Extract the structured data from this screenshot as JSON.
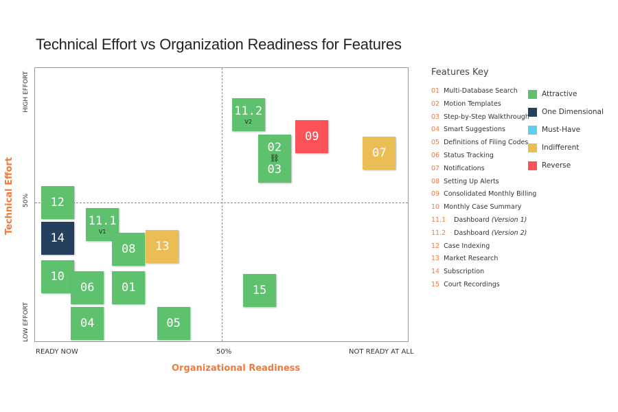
{
  "chart_data": {
    "type": "scatter",
    "title": "Technical Effort vs Organization Readiness for Features",
    "xlabel": "Organizational Readiness",
    "ylabel": "Technical Effort",
    "x_ticks": [
      "READY NOW",
      "50%",
      "NOT READY AT ALL"
    ],
    "y_ticks": [
      "LOW EFFORT",
      "50%",
      "HIGH EFFORT"
    ],
    "xlim": [
      0,
      100
    ],
    "ylim": [
      0,
      100
    ],
    "grid": "dashed midlines at 50%",
    "points": [
      {
        "labels": [
          "11.2"
        ],
        "sub": "V2",
        "x": 57,
        "y": 83,
        "category": "Attractive"
      },
      {
        "labels": [
          "02",
          "03"
        ],
        "linked": true,
        "x": 64,
        "y": 67,
        "category": "Attractive"
      },
      {
        "labels": [
          "09"
        ],
        "x": 74,
        "y": 75,
        "category": "Reverse"
      },
      {
        "labels": [
          "07"
        ],
        "x": 92,
        "y": 69,
        "category": "Indifferent"
      },
      {
        "labels": [
          "12"
        ],
        "x": 6,
        "y": 51,
        "category": "Attractive"
      },
      {
        "labels": [
          "14"
        ],
        "x": 6,
        "y": 38,
        "category": "One Dimensional"
      },
      {
        "labels": [
          "11.1"
        ],
        "sub": "V1",
        "x": 18,
        "y": 43,
        "category": "Attractive"
      },
      {
        "labels": [
          "08"
        ],
        "x": 25,
        "y": 34,
        "category": "Attractive"
      },
      {
        "labels": [
          "13"
        ],
        "x": 34,
        "y": 35,
        "category": "Indifferent"
      },
      {
        "labels": [
          "10"
        ],
        "x": 6,
        "y": 24,
        "category": "Attractive"
      },
      {
        "labels": [
          "06"
        ],
        "x": 14,
        "y": 20,
        "category": "Attractive"
      },
      {
        "labels": [
          "01"
        ],
        "x": 25,
        "y": 20,
        "category": "Attractive"
      },
      {
        "labels": [
          "15"
        ],
        "x": 60,
        "y": 19,
        "category": "Attractive"
      },
      {
        "labels": [
          "04"
        ],
        "x": 14,
        "y": 7,
        "category": "Attractive"
      },
      {
        "labels": [
          "05"
        ],
        "x": 37,
        "y": 7,
        "category": "Attractive"
      }
    ],
    "legend": {
      "placement": "right",
      "categories": [
        {
          "name": "Attractive",
          "color": "#5ec16d"
        },
        {
          "name": "One Dimensional",
          "color": "#253f5e"
        },
        {
          "name": "Must-Have",
          "color": "#5fcdf0"
        },
        {
          "name": "Indifferent",
          "color": "#ebbd55"
        },
        {
          "name": "Reverse",
          "color": "#fb5258"
        }
      ]
    }
  },
  "key": {
    "title": "Features Key",
    "items": [
      {
        "num": "01",
        "name": "Multi-Database Search"
      },
      {
        "num": "02",
        "name": "Motion Templates"
      },
      {
        "num": "03",
        "name": "Step-by-Step Walkthrough"
      },
      {
        "num": "04",
        "name": "Smart Suggestions"
      },
      {
        "num": "05",
        "name": "Definitions of Filing Codes"
      },
      {
        "num": "06",
        "name": "Status Tracking"
      },
      {
        "num": "07",
        "name": "Notifications"
      },
      {
        "num": "08",
        "name": "Setting Up Alerts"
      },
      {
        "num": "09",
        "name": "Consolidated Monthly Billing"
      },
      {
        "num": "10",
        "name": "Monthly Case Summary"
      },
      {
        "num": "11.1",
        "name": "Dashboard",
        "note": "(Version 1)"
      },
      {
        "num": "11.2",
        "name": "Dashboard",
        "note": "(Version 2)"
      },
      {
        "num": "12",
        "name": "Case Indexing"
      },
      {
        "num": "13",
        "name": "Market Research"
      },
      {
        "num": "14",
        "name": "Subscription"
      },
      {
        "num": "15",
        "name": "Court Recordings"
      }
    ]
  },
  "icons": {
    "link": "link-icon"
  }
}
